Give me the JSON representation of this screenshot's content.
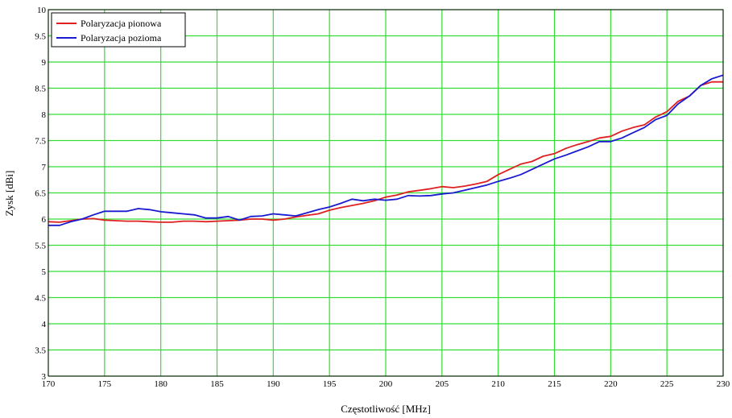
{
  "chart_data": {
    "type": "line",
    "xlabel": "Częstotliwość [MHz]",
    "ylabel": "Zysk [dBi]",
    "xlim": [
      170,
      230
    ],
    "ylim": [
      3,
      10
    ],
    "x_ticks": [
      "170",
      "175",
      "180",
      "185",
      "190",
      "195",
      "200",
      "205",
      "210",
      "215",
      "220",
      "225",
      "230"
    ],
    "y_ticks": [
      "3",
      "3.5",
      "4",
      "4.5",
      "5",
      "5.5",
      "6",
      "6.5",
      "7",
      "7.5",
      "8",
      "8.5",
      "9",
      "9.5",
      "10"
    ],
    "grid": true,
    "legend_position": "top-left",
    "colors": {
      "grid": "#33dd33",
      "frame": "#000000",
      "background": "#ffffff"
    },
    "series": [
      {
        "name": "Polaryzacja pionowa",
        "color": "#e02020",
        "x": [
          170,
          171,
          172,
          173,
          174,
          175,
          176,
          177,
          178,
          179,
          180,
          181,
          182,
          183,
          184,
          185,
          186,
          187,
          188,
          189,
          190,
          191,
          192,
          193,
          194,
          195,
          196,
          197,
          198,
          199,
          200,
          201,
          202,
          203,
          204,
          205,
          206,
          207,
          208,
          209,
          210,
          211,
          212,
          213,
          214,
          215,
          216,
          217,
          218,
          219,
          220,
          221,
          222,
          223,
          224,
          225,
          226,
          227,
          228,
          229,
          230
        ],
        "y": [
          5.95,
          5.94,
          5.97,
          6.0,
          6.01,
          5.98,
          5.97,
          5.96,
          5.96,
          5.95,
          5.94,
          5.94,
          5.96,
          5.96,
          5.95,
          5.96,
          5.97,
          5.98,
          6.0,
          6.0,
          5.98,
          6.0,
          6.04,
          6.07,
          6.1,
          6.17,
          6.22,
          6.26,
          6.3,
          6.35,
          6.42,
          6.46,
          6.52,
          6.55,
          6.58,
          6.62,
          6.6,
          6.63,
          6.67,
          6.72,
          6.85,
          6.95,
          7.05,
          7.1,
          7.2,
          7.25,
          7.35,
          7.42,
          7.48,
          7.55,
          7.58,
          7.68,
          7.75,
          7.8,
          7.95,
          8.05,
          8.25,
          8.35,
          8.55,
          8.62,
          8.62
        ]
      },
      {
        "name": "Polaryzacja pozioma",
        "color": "#1a1ad0",
        "x": [
          170,
          171,
          172,
          173,
          174,
          175,
          176,
          177,
          178,
          179,
          180,
          181,
          182,
          183,
          184,
          185,
          186,
          187,
          188,
          189,
          190,
          191,
          192,
          193,
          194,
          195,
          196,
          197,
          198,
          199,
          200,
          201,
          202,
          203,
          204,
          205,
          206,
          207,
          208,
          209,
          210,
          211,
          212,
          213,
          214,
          215,
          216,
          217,
          218,
          219,
          220,
          221,
          222,
          223,
          224,
          225,
          226,
          227,
          228,
          229,
          230
        ],
        "y": [
          5.88,
          5.88,
          5.95,
          6.0,
          6.08,
          6.15,
          6.15,
          6.15,
          6.2,
          6.18,
          6.14,
          6.12,
          6.1,
          6.08,
          6.02,
          6.02,
          6.05,
          5.98,
          6.05,
          6.06,
          6.1,
          6.08,
          6.06,
          6.12,
          6.18,
          6.23,
          6.3,
          6.38,
          6.35,
          6.38,
          6.36,
          6.38,
          6.45,
          6.44,
          6.45,
          6.48,
          6.5,
          6.55,
          6.6,
          6.65,
          6.72,
          6.78,
          6.85,
          6.95,
          7.05,
          7.15,
          7.22,
          7.3,
          7.38,
          7.48,
          7.48,
          7.55,
          7.65,
          7.75,
          7.9,
          7.98,
          8.2,
          8.35,
          8.55,
          8.68,
          8.75
        ]
      }
    ]
  }
}
